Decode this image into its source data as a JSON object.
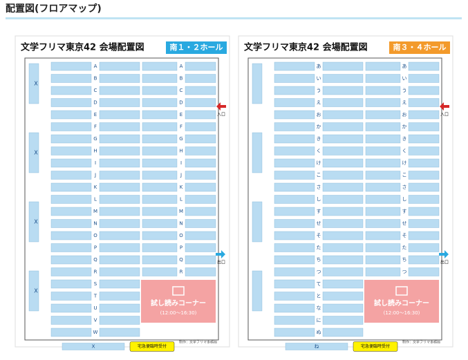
{
  "header": {
    "title": "配置図(フロアマップ)"
  },
  "halls": [
    {
      "title": "文学フリマ東京42 会場配置図",
      "hall": "南１・２ホール",
      "badge_color": "#29a9e0",
      "rows": [
        "A",
        "B",
        "C",
        "D",
        "E",
        "F",
        "G",
        "H",
        "I",
        "J",
        "K",
        "L",
        "M",
        "N",
        "O",
        "P",
        "Q",
        "R",
        "S",
        "T",
        "U",
        "V",
        "W"
      ],
      "bottom_row": "X",
      "side_label": "X",
      "entrance": "入口",
      "exit": "出口",
      "reading_corner": {
        "label": "試し読みコーナー",
        "hours": "(12:00～16:30)"
      },
      "delivery": "宅急便臨時受付",
      "credit": "制作：文学フリマ事務局"
    },
    {
      "title": "文学フリマ東京42 会場配置図",
      "hall": "南３・４ホール",
      "badge_color": "#f39a2b",
      "rows": [
        "あ",
        "い",
        "う",
        "え",
        "お",
        "か",
        "き",
        "く",
        "け",
        "こ",
        "さ",
        "し",
        "す",
        "せ",
        "そ",
        "た",
        "ち",
        "つ",
        "て",
        "と",
        "な",
        "に",
        "ぬ"
      ],
      "bottom_row": "ね",
      "entrance": "入口",
      "exit": "出口",
      "reading_corner": {
        "label": "試し読みコーナー",
        "hours": "(12:00～16:30)"
      },
      "delivery": "宅急便臨時受付",
      "credit": "制作：文学フリマ事務局"
    }
  ]
}
